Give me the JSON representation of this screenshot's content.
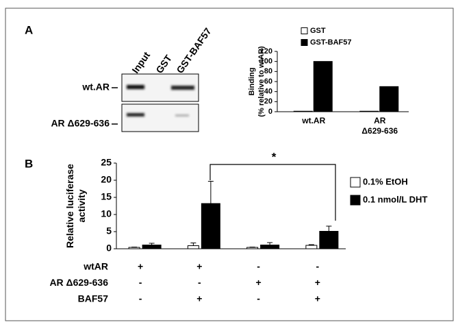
{
  "panels": [
    "A",
    "B"
  ],
  "gel": {
    "lanes": [
      "Input",
      "GST",
      "GST-BAF57"
    ],
    "rows": [
      "wt.AR",
      "AR Δ629-636"
    ]
  },
  "chart_data": [
    {
      "type": "bar",
      "ylabel": [
        "Binding",
        "(% relative to wtAR)"
      ],
      "categories": [
        [
          "wt.AR"
        ],
        [
          "AR",
          "Δ629-636"
        ]
      ],
      "series": [
        {
          "name": "GST",
          "color": "#ffffff",
          "values": [
            1,
            1
          ]
        },
        {
          "name": "GST-BAF57",
          "color": "#000000",
          "values": [
            100,
            50
          ]
        }
      ],
      "ylim": [
        0,
        120
      ],
      "yticks": [
        0,
        20,
        40,
        60,
        80,
        100,
        120
      ],
      "legend": "top"
    },
    {
      "type": "bar",
      "ylabel": [
        "Relative luciferase",
        "activity"
      ],
      "categories": [
        null,
        null,
        null,
        null
      ],
      "series": [
        {
          "name": "0.1% EtOH",
          "color": "#ffffff",
          "values": [
            0.4,
            0.9,
            0.4,
            1.0
          ],
          "errors": [
            0.1,
            0.8,
            0.1,
            0.2
          ]
        },
        {
          "name": "0.1 nmol/L DHT",
          "color": "#000000",
          "values": [
            1.1,
            13.2,
            1.1,
            5.1
          ],
          "errors": [
            0.5,
            6.5,
            0.7,
            1.5
          ]
        }
      ],
      "ylim": [
        0,
        25
      ],
      "yticks": [
        0,
        5,
        10,
        15,
        20,
        25
      ],
      "legend": "right",
      "annotation": "*",
      "conditions": [
        {
          "name": "wtAR",
          "values": [
            "+",
            "+",
            "-",
            "-"
          ]
        },
        {
          "name": "AR Δ629-636",
          "values": [
            "-",
            "-",
            "+",
            "+"
          ]
        },
        {
          "name": "BAF57",
          "values": [
            "-",
            "+",
            "-",
            "+"
          ]
        }
      ]
    }
  ]
}
